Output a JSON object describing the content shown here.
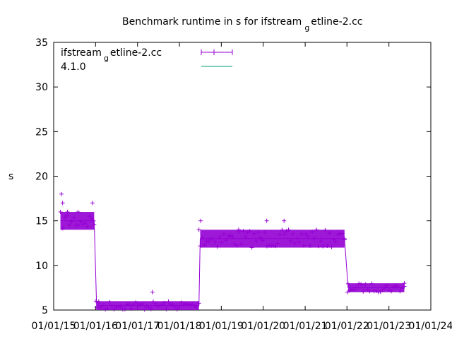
{
  "chart_data": {
    "type": "line",
    "title_main": "Benchmark runtime in s for ifstream",
    "title_sub": "g",
    "title_rest": "etline-2.cc",
    "xlabel": "",
    "ylabel": "s",
    "ylim": [
      5,
      35
    ],
    "yticks": [
      5,
      10,
      15,
      20,
      25,
      30,
      35
    ],
    "xlim": [
      "2015-01-01",
      "2024-01-01"
    ],
    "xticks": [
      {
        "date": "2015-01-01",
        "label": "01/01/15"
      },
      {
        "date": "2016-01-01",
        "label": "01/01/16"
      },
      {
        "date": "2017-01-01",
        "label": "01/01/17"
      },
      {
        "date": "2018-01-01",
        "label": "01/01/18"
      },
      {
        "date": "2019-01-01",
        "label": "01/01/19"
      },
      {
        "date": "2020-01-01",
        "label": "01/01/20"
      },
      {
        "date": "2021-01-01",
        "label": "01/01/21"
      },
      {
        "date": "2021-12-31",
        "label": "01/01/22"
      },
      {
        "date": "2023-01-01",
        "label": "01/01/23"
      },
      {
        "date": "2024-01-01",
        "label": "01/01/24"
      }
    ],
    "grid": false,
    "legend_position": "top-left",
    "series": [
      {
        "name_main": "ifstream",
        "name_sub": "g",
        "name_rest": "etline-2.cc",
        "color": "#9400d3",
        "marker": "plus",
        "segments": [
          {
            "start": "2015-03-01",
            "end": "2015-12-20",
            "low": 14,
            "high": 16,
            "dense": true
          },
          {
            "start": "2016-01-10",
            "end": "2018-06-20",
            "low": 5,
            "high": 6,
            "dense": true
          },
          {
            "start": "2018-07-01",
            "end": "2021-12-10",
            "low": 12,
            "high": 14,
            "dense": true
          },
          {
            "start": "2022-01-10",
            "end": "2023-05-15",
            "low": 7,
            "high": 8,
            "dense": true
          }
        ],
        "points": [
          {
            "x": "2015-03-10",
            "y": 18
          },
          {
            "x": "2015-03-20",
            "y": 17
          },
          {
            "x": "2015-05-01",
            "y": 16
          },
          {
            "x": "2015-08-01",
            "y": 16
          },
          {
            "x": "2015-12-05",
            "y": 17
          },
          {
            "x": "2015-12-15",
            "y": 15
          },
          {
            "x": "2016-01-05",
            "y": 6
          },
          {
            "x": "2017-05-10",
            "y": 7
          },
          {
            "x": "2018-06-20",
            "y": 14
          },
          {
            "x": "2018-07-05",
            "y": 15
          },
          {
            "x": "2019-06-01",
            "y": 14
          },
          {
            "x": "2020-02-01",
            "y": 15
          },
          {
            "x": "2020-07-01",
            "y": 15
          },
          {
            "x": "2021-12-10",
            "y": 13
          },
          {
            "x": "2022-01-05",
            "y": 7
          },
          {
            "x": "2023-05-15",
            "y": 8
          }
        ]
      },
      {
        "name": "4.1.0",
        "color": "#009e73",
        "values_note": ""
      }
    ]
  },
  "colors": {
    "series1": "#9400d3",
    "series2": "#009e73",
    "axis": "#000000"
  }
}
